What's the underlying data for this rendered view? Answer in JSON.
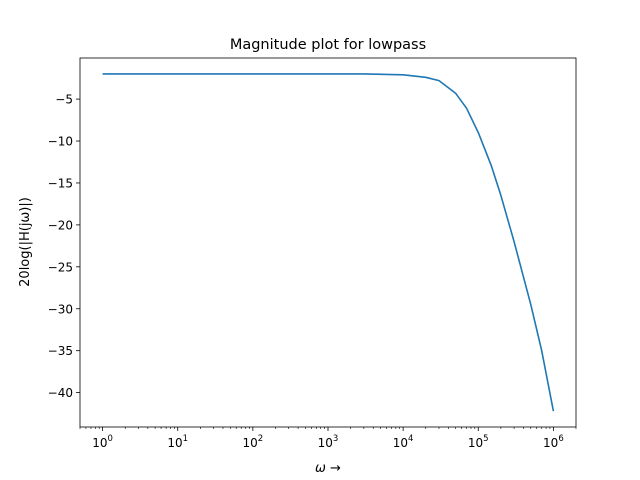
{
  "chart_data": {
    "type": "line",
    "title": "Magnitude plot for lowpass",
    "xlabel": "ω →",
    "ylabel": "20log(|H(jω)|)",
    "xscale": "log",
    "xlim": [
      0.5,
      2000000
    ],
    "ylim": [
      -44.1,
      -0.1
    ],
    "grid": false,
    "x_ticks": [
      {
        "value": 1,
        "base": "10",
        "exp": "0"
      },
      {
        "value": 10,
        "base": "10",
        "exp": "1"
      },
      {
        "value": 100,
        "base": "10",
        "exp": "2"
      },
      {
        "value": 1000,
        "base": "10",
        "exp": "3"
      },
      {
        "value": 10000,
        "base": "10",
        "exp": "4"
      },
      {
        "value": 100000,
        "base": "10",
        "exp": "5"
      },
      {
        "value": 1000000,
        "base": "10",
        "exp": "6"
      }
    ],
    "y_ticks": [
      {
        "value": -5,
        "label": "−5"
      },
      {
        "value": -10,
        "label": "−10"
      },
      {
        "value": -15,
        "label": "−15"
      },
      {
        "value": -20,
        "label": "−20"
      },
      {
        "value": -25,
        "label": "−25"
      },
      {
        "value": -30,
        "label": "−30"
      },
      {
        "value": -35,
        "label": "−35"
      },
      {
        "value": -40,
        "label": "−40"
      }
    ],
    "series": [
      {
        "color": "#1f77b4",
        "x": [
          1,
          10,
          100,
          1000,
          3000,
          10000,
          20000,
          30000,
          50000,
          70000,
          100000,
          150000,
          200000,
          300000,
          500000,
          700000,
          1000000
        ],
        "y": [
          -2.0,
          -2.0,
          -2.0,
          -2.0,
          -2.0,
          -2.1,
          -2.4,
          -2.8,
          -4.3,
          -6.1,
          -9.0,
          -13.0,
          -16.5,
          -22.0,
          -29.5,
          -35.0,
          -42.2
        ]
      }
    ]
  }
}
